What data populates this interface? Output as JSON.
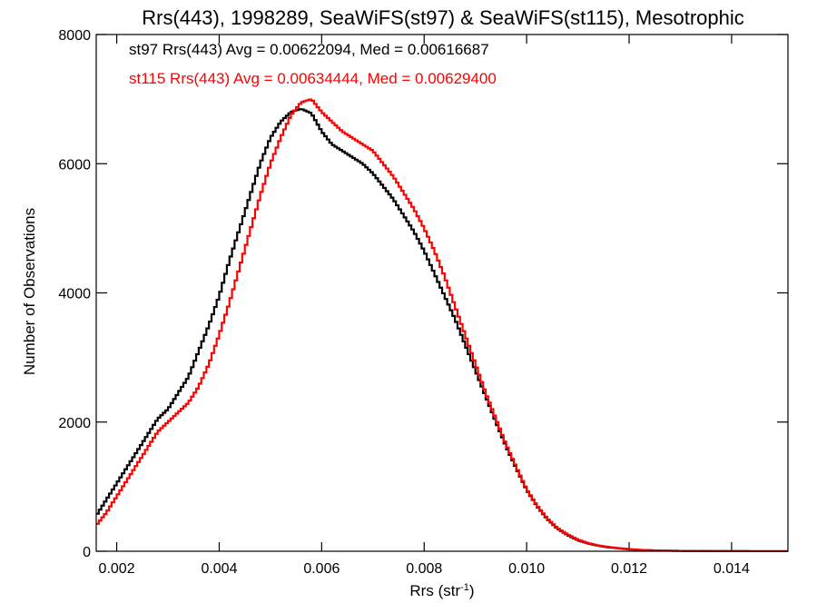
{
  "chart_data": {
    "type": "line",
    "style": "histogram-step",
    "title": "Rrs(443), 1998289, SeaWiFS(st97) & SeaWiFS(st115), Mesotrophic",
    "xlabel": "Rrs (str",
    "xlabel_sup": "-1",
    "xlabel_close": ")",
    "ylabel": "Number of Observations",
    "xlim": [
      0.0016,
      0.0151
    ],
    "ylim": [
      0,
      8000
    ],
    "x_ticks": [
      "0.002",
      "0.004",
      "0.006",
      "0.008",
      "0.010",
      "0.012",
      "0.014"
    ],
    "x_tick_values": [
      0.002,
      0.004,
      0.006,
      0.008,
      0.01,
      0.012,
      0.014
    ],
    "y_ticks": [
      "0",
      "2000",
      "4000",
      "6000",
      "8000"
    ],
    "y_tick_values": [
      0,
      2000,
      4000,
      6000,
      8000
    ],
    "bin_width": 5e-05,
    "annotations": [
      "st97 Rrs(443) Avg = 0.00622094, Med = 0.00616687",
      "st115 Rrs(443) Avg = 0.00634444, Med = 0.00629400"
    ],
    "series": [
      {
        "name": "st97",
        "color": "#000000",
        "x": [
          0.0016,
          0.0018,
          0.002,
          0.0022,
          0.0024,
          0.0026,
          0.0028,
          0.003,
          0.0032,
          0.0034,
          0.0036,
          0.0038,
          0.004,
          0.0042,
          0.0044,
          0.0046,
          0.0048,
          0.005,
          0.0052,
          0.0054,
          0.0056,
          0.0058,
          0.006,
          0.0062,
          0.0064,
          0.0066,
          0.0068,
          0.007,
          0.0072,
          0.0074,
          0.0076,
          0.0078,
          0.008,
          0.0082,
          0.0084,
          0.0086,
          0.0088,
          0.009,
          0.0092,
          0.0094,
          0.0096,
          0.0098,
          0.01,
          0.0102,
          0.0104,
          0.0106,
          0.0108,
          0.011,
          0.0112,
          0.0114,
          0.0116,
          0.0118,
          0.012,
          0.0122,
          0.0124,
          0.0126,
          0.0128,
          0.013,
          0.0132,
          0.0134,
          0.0136,
          0.0138,
          0.014,
          0.0142,
          0.0144,
          0.0146,
          0.0148,
          0.015
        ],
        "y": [
          550,
          800,
          1050,
          1300,
          1550,
          1800,
          2050,
          2200,
          2450,
          2700,
          3100,
          3500,
          3950,
          4500,
          5000,
          5500,
          6000,
          6400,
          6650,
          6800,
          6850,
          6780,
          6500,
          6300,
          6200,
          6100,
          6000,
          5850,
          5650,
          5450,
          5200,
          4950,
          4650,
          4300,
          3950,
          3600,
          3200,
          2800,
          2400,
          2000,
          1620,
          1280,
          950,
          700,
          500,
          350,
          250,
          170,
          120,
          85,
          60,
          45,
          30,
          20,
          15,
          10,
          8,
          6,
          5,
          4,
          3,
          2,
          2,
          2,
          1,
          1,
          1,
          1
        ]
      },
      {
        "name": "st115",
        "color": "#ff0000",
        "x": [
          0.0016,
          0.0018,
          0.002,
          0.0022,
          0.0024,
          0.0026,
          0.0028,
          0.003,
          0.0032,
          0.0034,
          0.0036,
          0.0038,
          0.004,
          0.0042,
          0.0044,
          0.0046,
          0.0048,
          0.005,
          0.0052,
          0.0054,
          0.0056,
          0.0058,
          0.006,
          0.0062,
          0.0064,
          0.0066,
          0.0068,
          0.007,
          0.0072,
          0.0074,
          0.0076,
          0.0078,
          0.008,
          0.0082,
          0.0084,
          0.0086,
          0.0088,
          0.009,
          0.0092,
          0.0094,
          0.0096,
          0.0098,
          0.01,
          0.0102,
          0.0104,
          0.0106,
          0.0108,
          0.011,
          0.0112,
          0.0114,
          0.0116,
          0.0118,
          0.012,
          0.0122,
          0.0124,
          0.0126,
          0.0128,
          0.013,
          0.0132,
          0.0134,
          0.0136,
          0.0138,
          0.014,
          0.0142,
          0.0144,
          0.0146,
          0.0148,
          0.015
        ],
        "y": [
          400,
          600,
          850,
          1100,
          1350,
          1600,
          1850,
          2000,
          2150,
          2300,
          2550,
          2900,
          3350,
          3850,
          4400,
          4950,
          5500,
          6000,
          6400,
          6750,
          6950,
          7000,
          6800,
          6650,
          6500,
          6400,
          6300,
          6200,
          6000,
          5800,
          5550,
          5300,
          5000,
          4650,
          4250,
          3800,
          3350,
          2900,
          2450,
          2050,
          1650,
          1300,
          960,
          710,
          510,
          360,
          260,
          180,
          125,
          90,
          65,
          48,
          33,
          22,
          16,
          11,
          8,
          6,
          5,
          4,
          3,
          2,
          2,
          2,
          1,
          1,
          1,
          1
        ]
      }
    ]
  }
}
